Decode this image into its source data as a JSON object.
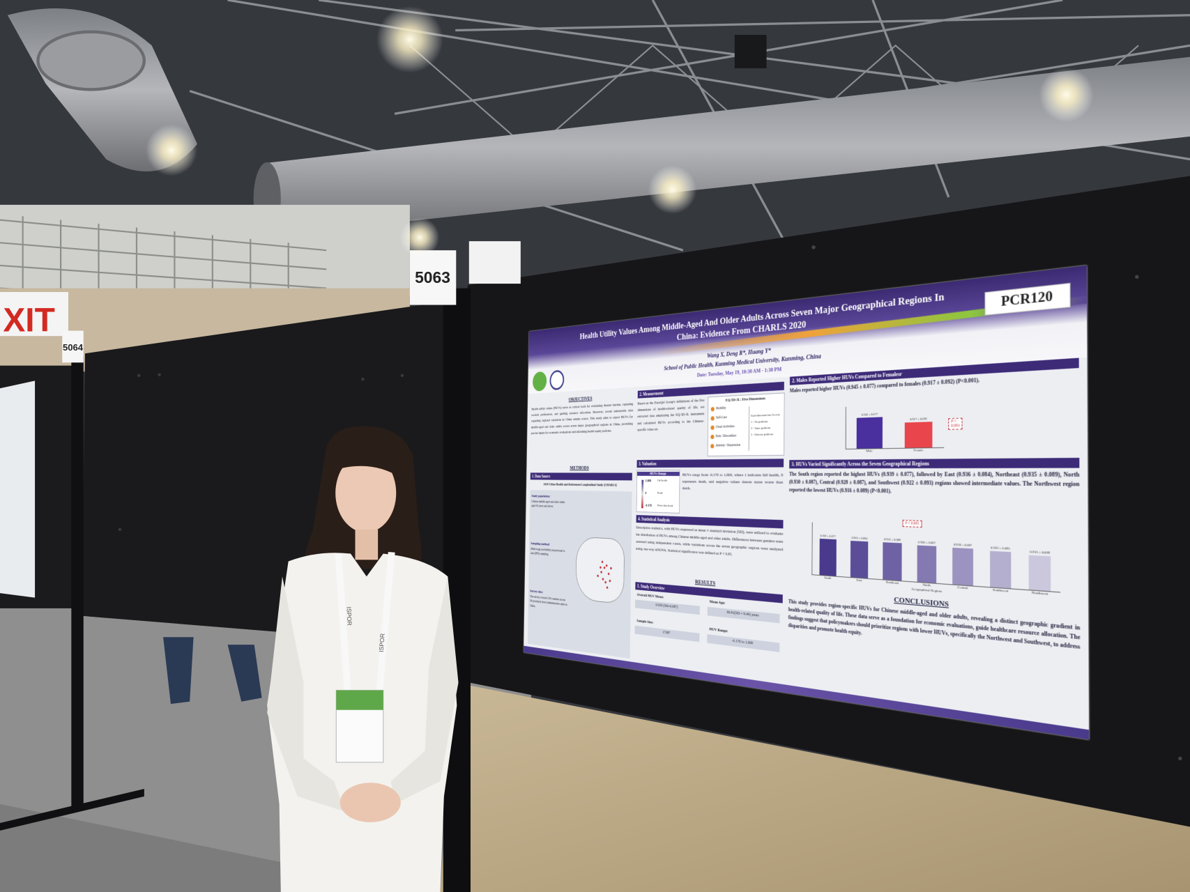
{
  "scene": {
    "exit_sign": "XIT",
    "board_numbers": [
      "5064",
      "5063"
    ],
    "lanyard": "ISPOR"
  },
  "poster": {
    "code": "PCR120",
    "title": "Health Utility Values Among Middle-Aged And Older Adults Across Seven Major Geographical Regions In China: Evidence From CHARLS 2020",
    "authors": "Wang X, Deng R*, Huang Y*",
    "affiliation": "School of Public Health, Kunming Medical University, Kunming, China",
    "date": "Date: Tuesday, May 19, 10:30 AM - 1:30 PM",
    "objectives": {
      "heading": "OBJECTIVES",
      "text": "Health utility values (HUVs) serve as critical tools for evaluating disease burden, capturing societal preferences, and guiding resource allocation. However, recent nationwide data regarding regional variations in China remain scarce. This study aims to report HUVs for middle-aged and older adults across seven major geographical regions in China, providing precise inputs for economic evaluations and informing health equity policies."
    },
    "methods": {
      "heading": "METHODS",
      "data_source": {
        "heading": "1. Data Source",
        "study": "2020 China Health and Retirement Longitudinal Study (CHARLS)",
        "items": [
          {
            "label": "Study population:",
            "text": "Chinese middle-aged and older adults aged 45 years and above."
          },
          {
            "label": "Sampling method:",
            "text": "Multi-stage probability proportional to size (PPS) sampling."
          },
          {
            "label": "Survey sites:",
            "text": "The survey covered 150 counties across 28 provincial-level administrative units in China."
          }
        ]
      },
      "measurement": {
        "heading": "2. Measurement",
        "text": "Based on the EuroQol Group's definitions of the five dimensions of health-related quality of life, we extracted data employing the EQ-5D-3L instrument and calculated HUVs according to the Chinese-specific value set.",
        "box_title": "EQ-5D-3L: Five Dimensions",
        "dimensions": [
          "Mobility",
          "Self-Care",
          "Usual Activities",
          "Pain / Discomfort",
          "Anxiety / Depression"
        ],
        "levels": [
          "Each dimension has 3 levels:",
          "1 = No problems",
          "2 = Some problems",
          "3 = Extreme problems"
        ]
      },
      "valuation": {
        "heading": "3. Valuation",
        "box_title": "HUVs Range",
        "scale": [
          {
            "mark": "1.000",
            "meaning": "Full health"
          },
          {
            "mark": "0",
            "meaning": "Death"
          },
          {
            "mark": "-0.170",
            "meaning": "Worse than death"
          }
        ],
        "text": "HUVs range from -0.170 to 1.000, where 1 indicates full health, 0 represents death, and negative values denote states worse than death."
      },
      "analysis": {
        "heading": "4. Statistical Analysis",
        "text": "Descriptive statistics, with HUVs expressed as mean ± standard deviation (SD), were utilized to evaluate the distribution of HUVs among Chinese middle-aged and older adults. Differences between genders were assessed using independent t-tests, while variations across the seven geographic regions were analyzed using one-way ANOVA. Statistical significance was defined as P < 0.05."
      }
    },
    "results": {
      "heading": "RESULTS",
      "overview": {
        "heading": "1. Study Overview",
        "items": [
          {
            "label": "Overall HUV Mean:",
            "value": "0.930 (SD=0.087)"
          },
          {
            "label": "Sample Size:",
            "value": "17287"
          },
          {
            "label": "Mean Age:",
            "value": "66.91(SD = 9.49) years"
          },
          {
            "label": "HUV Range:",
            "value": "-0.170 to 1.000"
          }
        ]
      },
      "sex": {
        "heading": "2. Males Reported Higher HUVs Compared to Femalesr",
        "text": "Males reported higher HUVs (0.945 ± 0.077) compared to females (0.917 ± 0.092) (P<0.001).",
        "chart": {
          "type": "bar",
          "categories": [
            "Male",
            "Female"
          ],
          "values": [
            0.945,
            0.917
          ],
          "value_labels": [
            "0.945 ± 0.077",
            "0.917 ± 0.092"
          ],
          "colors": [
            "#4a2f9e",
            "#e8454c"
          ],
          "ylim": [
            0.8,
            1.0
          ],
          "annotation": "P < 0.001"
        }
      },
      "regions": {
        "heading": "3. HUVs Varied Significantly Across the Seven Geographical Regions",
        "text": "The South region reported the highest HUVs (0.939 ± 0.077), followed by East (0.936 ± 0.084), Northeast (0.935 ± 0.089), North (0.930 ± 0.087), Central (0.928 ± 0.087), and Southwest (0.922 ± 0.093) regions showed intermediate values. The Northwest region reported the lowest HUVs (0.916 ± 0.089) (P<0.001).",
        "chart": {
          "type": "bar",
          "categories": [
            "South",
            "East",
            "Northeast",
            "North",
            "Central",
            "Southwest",
            "Northwest"
          ],
          "values": [
            0.939,
            0.936,
            0.935,
            0.93,
            0.928,
            0.922,
            0.916
          ],
          "value_labels": [
            "0.939 ± 0.077",
            "0.936 ± 0.084",
            "0.935 ± 0.089",
            "0.930 ± 0.087",
            "0.928 ± 0.087",
            "0.922 ± 0.093",
            "0.916 ± 0.089"
          ],
          "colors": [
            "#4a3a8c",
            "#5c4d98",
            "#6f62a4",
            "#8579b2",
            "#9c93c0",
            "#b4aecf",
            "#cbc7dd"
          ],
          "ylim": [
            0.8,
            1.0
          ],
          "x_label": "Geographical Regions",
          "annotation": "P < 0.001"
        }
      }
    },
    "conclusions": {
      "heading": "CONCLUSIONS",
      "text": "This study provides region-specific HUVs for Chinese middle-aged and older adults, revealing a distinct geographic gradient in health-related quality of life. These data serve as a foundation for economic evaluations, guide healthcare resource allocation. The findings suggest that policymakers should prioritize regions with lower HUVs, specifically the Northwest and Southwest, to address disparities and promote health equity."
    }
  }
}
